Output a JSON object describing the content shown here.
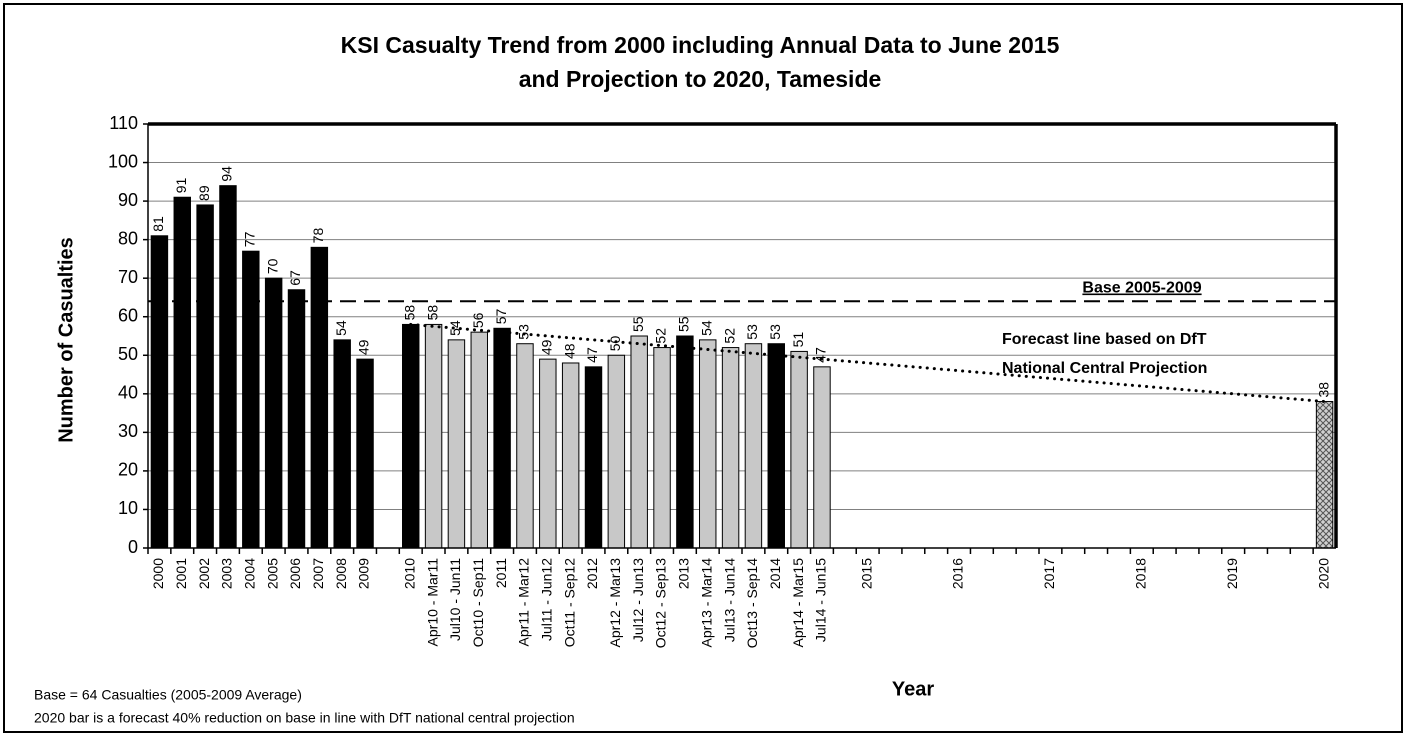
{
  "chart_data": {
    "type": "bar",
    "title": [
      "KSI Casualty Trend from 2000 including Annual Data to June 2015",
      "and Projection to 2020, Tameside"
    ],
    "y_label": "Number of Casualties",
    "x_label": "Year",
    "categories": [
      "2000",
      "2001",
      "2002",
      "2003",
      "2004",
      "2005",
      "2006",
      "2007",
      "2008",
      "2009",
      null,
      "2010",
      "Apr10 - Mar11",
      "Jul10 - Jun11",
      "Oct10 - Sep11",
      "2011",
      "Apr11 - Mar12",
      "Jul11 - Jun12",
      "Oct11 - Sep12",
      "2012",
      "Apr12 - Mar13",
      "Jul12 - Jun13",
      "Oct12 - Sep13",
      "2013",
      "Apr13 - Mar14",
      "Jul13 - Jun14",
      "Oct13 - Sep14",
      "2014",
      "Apr14 - Mar15",
      "Jul14 - Jun15",
      null,
      "2015",
      null,
      null,
      null,
      "2016",
      null,
      null,
      null,
      "2017",
      null,
      null,
      null,
      "2018",
      null,
      null,
      null,
      "2019",
      null,
      null,
      null,
      "2020"
    ],
    "values": [
      81,
      91,
      89,
      94,
      77,
      70,
      67,
      78,
      54,
      49,
      null,
      58,
      58,
      54,
      56,
      57,
      53,
      49,
      48,
      47,
      50,
      55,
      52,
      55,
      54,
      52,
      53,
      53,
      51,
      47,
      null,
      null,
      null,
      null,
      null,
      null,
      null,
      null,
      null,
      null,
      null,
      null,
      null,
      null,
      null,
      null,
      null,
      null,
      null,
      null,
      null,
      38
    ],
    "bar_fills": [
      "#000000",
      "#000000",
      "#000000",
      "#000000",
      "#000000",
      "#000000",
      "#000000",
      "#000000",
      "#000000",
      "#000000",
      null,
      "#000000",
      "#c8c8c8",
      "#c8c8c8",
      "#c8c8c8",
      "#000000",
      "#c8c8c8",
      "#c8c8c8",
      "#c8c8c8",
      "#000000",
      "#c8c8c8",
      "#c8c8c8",
      "#c8c8c8",
      "#000000",
      "#c8c8c8",
      "#c8c8c8",
      "#c8c8c8",
      "#000000",
      "#c8c8c8",
      "#c8c8c8",
      null,
      null,
      null,
      null,
      null,
      null,
      null,
      null,
      null,
      null,
      null,
      null,
      null,
      null,
      null,
      null,
      null,
      null,
      null,
      null,
      null,
      "hatch"
    ],
    "ylim": [
      0,
      110
    ],
    "yticks": [
      0,
      10,
      20,
      30,
      40,
      50,
      60,
      70,
      80,
      90,
      100,
      110
    ],
    "grid": true,
    "base_line": {
      "label": "Base 2005-2009",
      "value": 64
    },
    "forecast_line": {
      "label": [
        "Forecast line based on DfT",
        "National Central Projection"
      ],
      "start": {
        "category": "2010",
        "value": 58
      },
      "end": {
        "category": "2020",
        "value": 38
      }
    },
    "notes": [
      "Base = 64 Casualties (2005-2009 Average)",
      "2020 bar is a forecast 40% reduction on base in line with DfT national central projection"
    ]
  }
}
